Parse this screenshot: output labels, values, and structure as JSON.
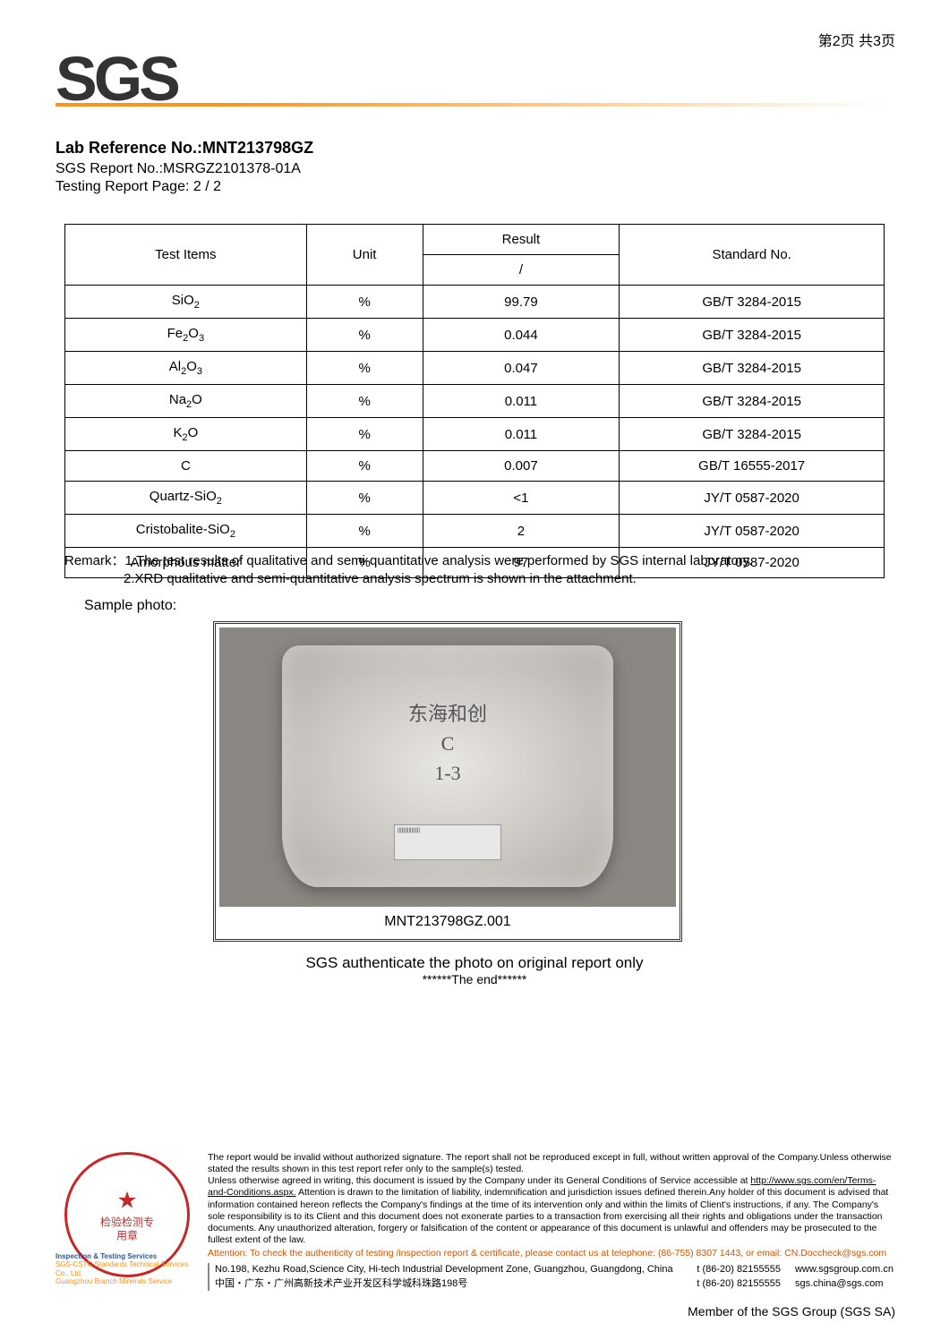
{
  "page_indicator": "第2页 共3页",
  "logo_text": "SGS",
  "header": {
    "lab_ref_label": "Lab Reference No.:",
    "lab_ref_value": "MNT213798GZ",
    "sgs_report": "SGS Report No.:MSRGZ2101378-01A",
    "testing_page": "Testing Report Page: 2 / 2"
  },
  "table": {
    "headers": {
      "items": "Test Items",
      "unit": "Unit",
      "result": "Result",
      "result_sub": "/",
      "standard": "Standard No."
    },
    "rows": [
      {
        "item_html": "SiO<span class='sub'>2</span>",
        "unit": "%",
        "result": "99.79",
        "std": "GB/T 3284-2015"
      },
      {
        "item_html": "Fe<span class='sub'>2</span>O<span class='sub'>3</span>",
        "unit": "%",
        "result": "0.044",
        "std": "GB/T 3284-2015"
      },
      {
        "item_html": "Al<span class='sub'>2</span>O<span class='sub'>3</span>",
        "unit": "%",
        "result": "0.047",
        "std": "GB/T 3284-2015"
      },
      {
        "item_html": "Na<span class='sub'>2</span>O",
        "unit": "%",
        "result": "0.011",
        "std": "GB/T 3284-2015"
      },
      {
        "item_html": "K<span class='sub'>2</span>O",
        "unit": "%",
        "result": "0.011",
        "std": "GB/T 3284-2015"
      },
      {
        "item_html": "C",
        "unit": "%",
        "result": "0.007",
        "std": "GB/T 16555-2017"
      },
      {
        "item_html": "Quartz-SiO<span class='sub'>2</span>",
        "unit": "%",
        "result": "<1",
        "std": "JY/T 0587-2020"
      },
      {
        "item_html": "Cristobalite-SiO<span class='sub'>2</span>",
        "unit": "%",
        "result": "2",
        "std": "JY/T 0587-2020"
      },
      {
        "item_html": "Amorphous matter",
        "unit": "%",
        "result": "97",
        "std": "JY/T 0587-2020"
      }
    ]
  },
  "remark": {
    "label": "Remark：",
    "line1": "1.The test results of qualitative and semi-quantitative analysis were performed by SGS internal laboratory.",
    "line2": "2.XRD qualitative and semi-quantitative analysis spectrum is shown in the attachment."
  },
  "sample_photo_label": "Sample photo:",
  "photo": {
    "bag_text_line1": "东海和创",
    "bag_text_line2": "C",
    "bag_text_line3": "1-3",
    "caption": "MNT213798GZ.001"
  },
  "auth_line": "SGS authenticate the photo on original report only",
  "the_end": "******The end******",
  "stamp": {
    "inner_text": "检验检测专用章",
    "banner_line1": "Inspection & Testing Services",
    "orange1": "SGS-CSTC Standards Technical Services Co., Ltd.",
    "orange2": "Guangzhou Branch         Minerals Service"
  },
  "disclaimer": {
    "p1": "The report would be invalid without authorized signature. The report shall not be reproduced except in full, without written approval of the Company.Unless otherwise stated the results shown in this test report refer only to the sample(s) tested.",
    "p2a": "Unless otherwise agreed in writing, this document is issued by the Company under its General Conditions of Service accessible at ",
    "p2link": "http://www.sgs.com/en/Terms-and-Conditions.aspx.",
    "p2b": " Attention is drawn to the limitation of liability, indemnification and jurisdiction issues defined therein.Any holder of this document is advised that information contained hereon reflects the Company's findings at the time of its intervention only and within the limits of Client's instructions, if any. The Company's sole responsibility is to its Client and this document does not exonerate parties to a transaction from exercising all their rights and obligations under the transaction documents. Any unauthorized alteration, forgery or falsification of the content or appearance of this document is unlawful and offenders may be prosecuted to the fullest extent of the law.",
    "attention": "Attention: To check the authenticity of testing /inspection report & certificate, please contact us at telephone: (86-755) 8307 1443, or email: CN.Doccheck@sgs.com"
  },
  "address": {
    "en": "No.198, Kezhu Road,Science City, Hi-tech Industrial Development Zone, Guangzhou, Guangdong, China",
    "cn": "中国・广东・广州高新技术产业开发区科学城科珠路198号",
    "tel": "t (86-20) 82155555",
    "web": "www.sgsgroup.com.cn",
    "email": "sgs.china@sgs.com"
  },
  "member": "Member of the SGS Group (SGS SA)"
}
